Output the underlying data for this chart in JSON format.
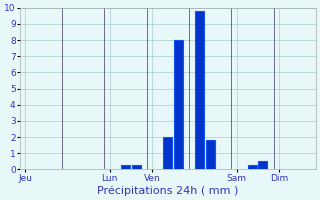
{
  "bar_positions": [
    10,
    11,
    14,
    15,
    17,
    18,
    22,
    23
  ],
  "bar_values": [
    0.3,
    0.3,
    2.0,
    8.0,
    9.8,
    1.8,
    0.3,
    0.5
  ],
  "bar_color": "#0033cc",
  "bar_edge_color": "#1155ee",
  "xlabel": "Précipitations 24h ( mm )",
  "ylim": [
    0,
    10
  ],
  "yticks": [
    0,
    1,
    2,
    3,
    4,
    5,
    6,
    7,
    8,
    9,
    10
  ],
  "xlim": [
    0,
    28
  ],
  "xtick_positions": [
    0.5,
    8.5,
    12.5,
    20.5,
    24.5
  ],
  "xtick_labels": [
    "Jeu",
    "Lun",
    "Ven",
    "Sam",
    "Dim"
  ],
  "vline_positions": [
    4,
    8,
    12,
    16,
    20,
    24
  ],
  "background_color": "#e8f8f8",
  "grid_color": "#aacccc",
  "text_color": "#3333bb",
  "bar_width": 0.85
}
